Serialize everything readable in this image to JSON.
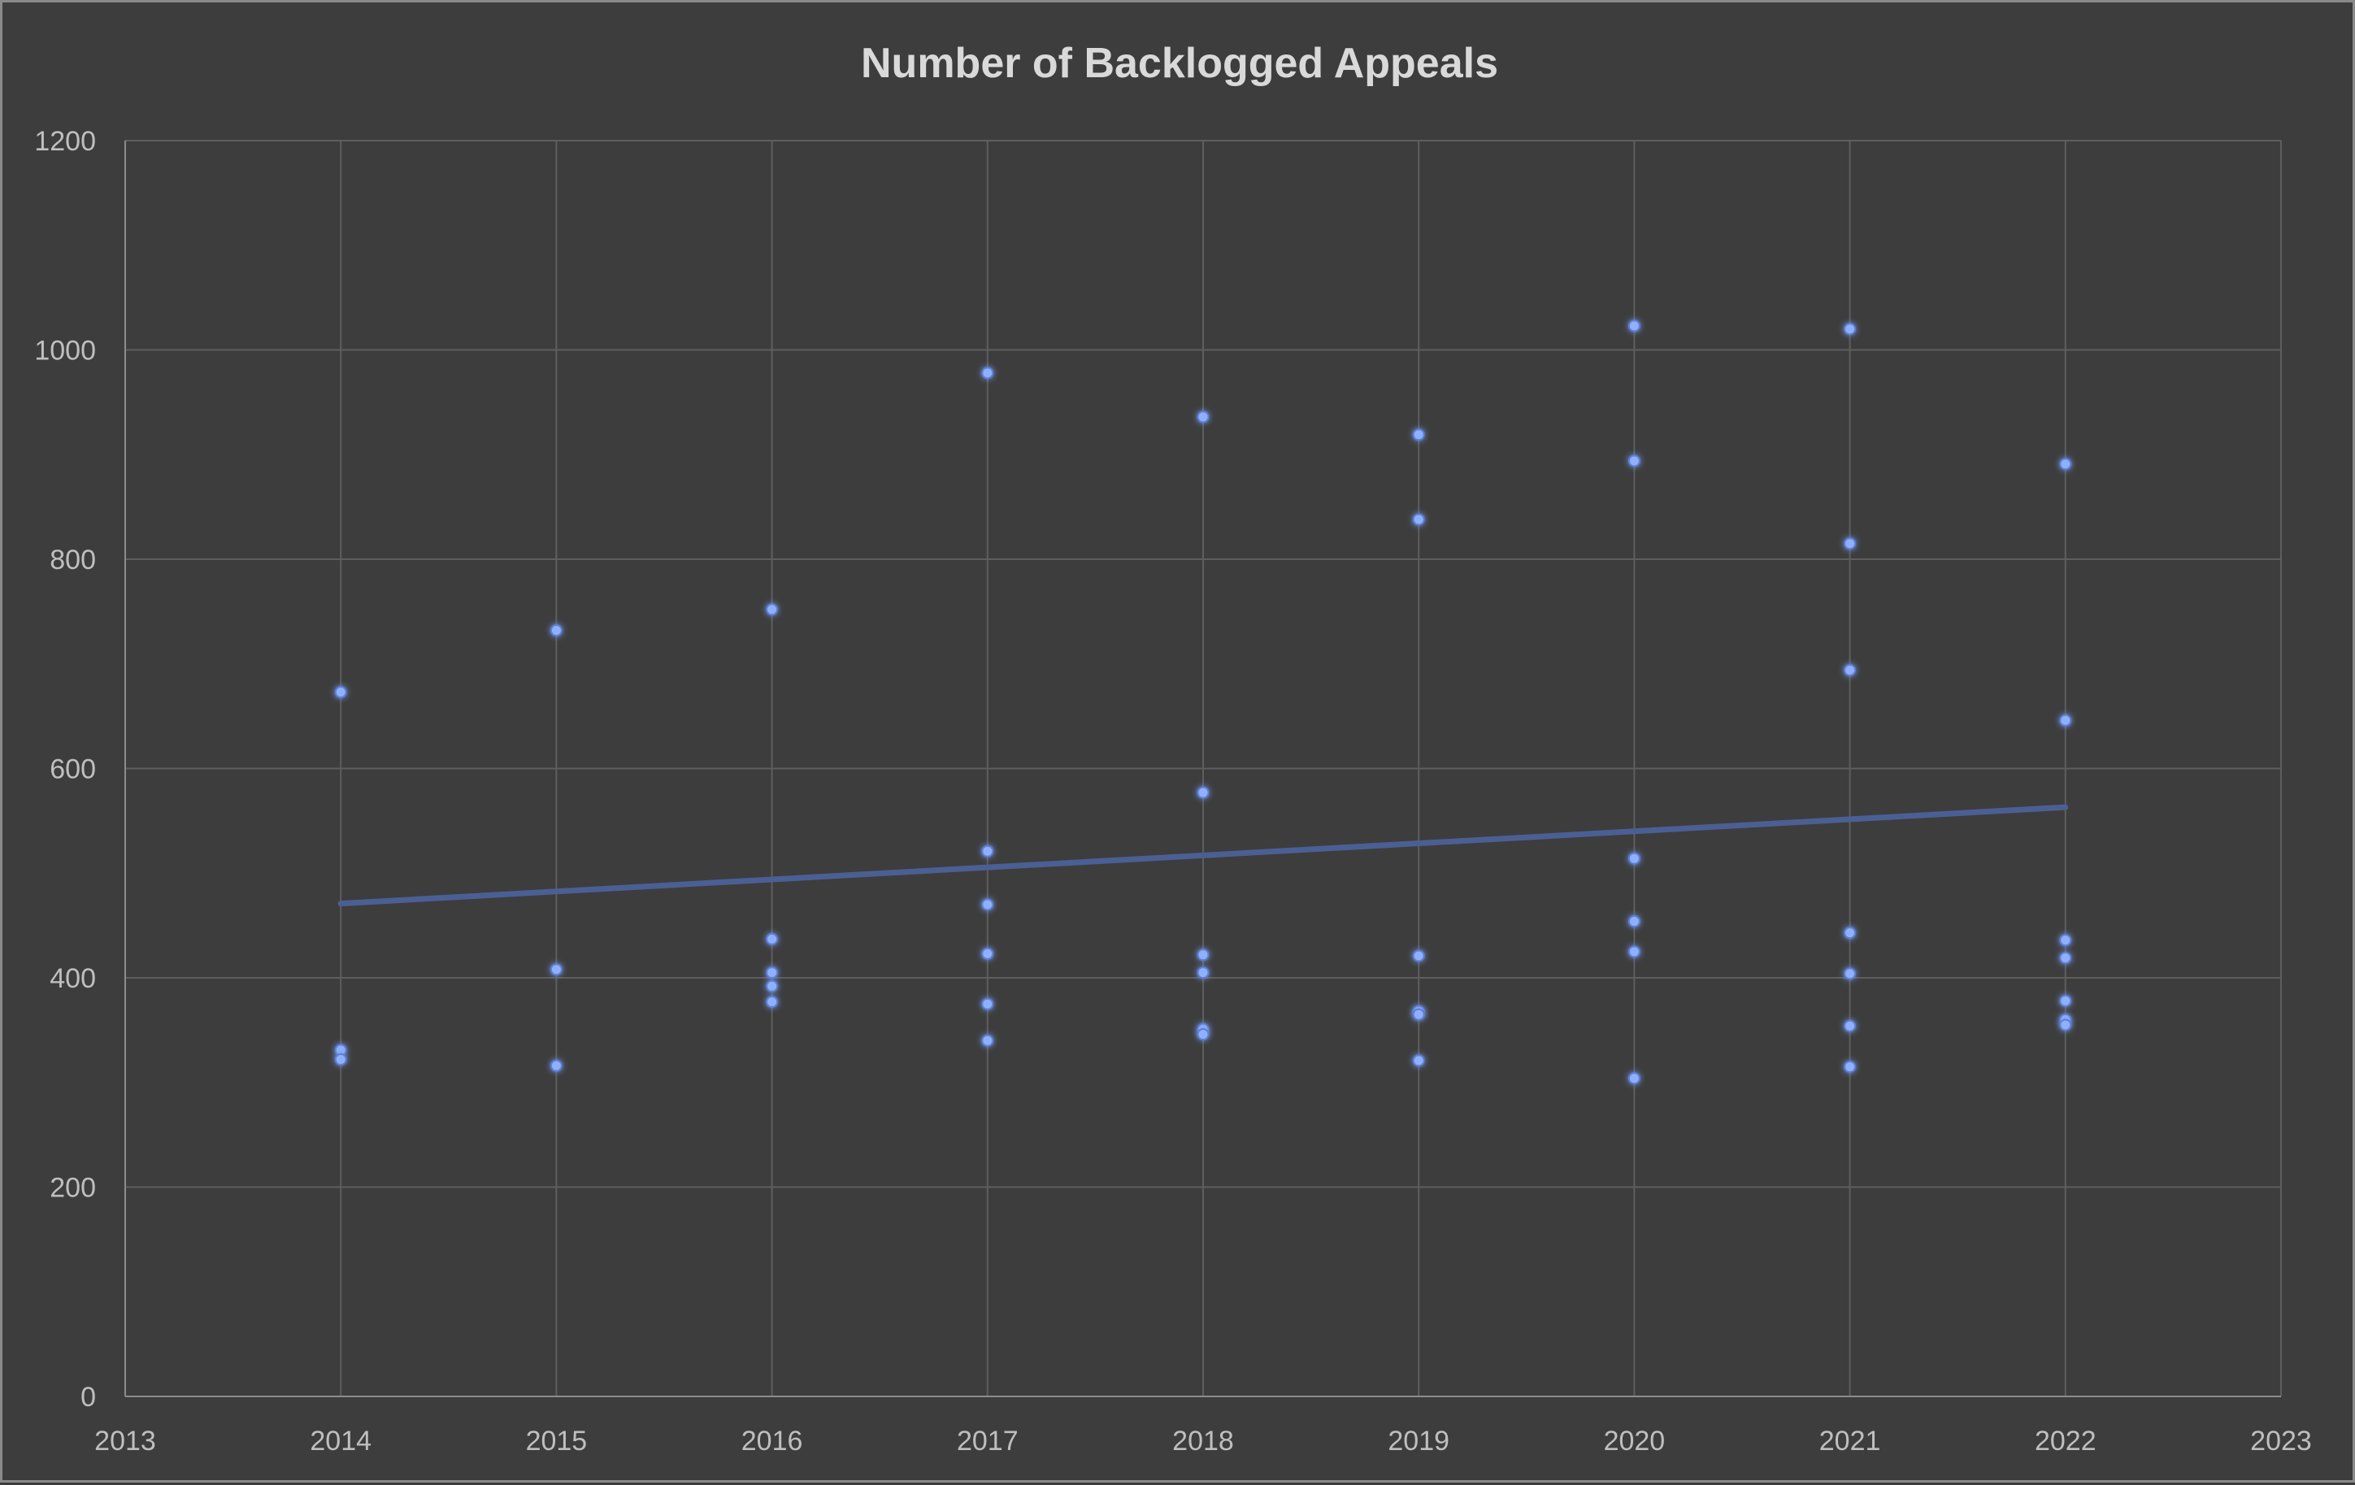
{
  "chart_data": {
    "type": "scatter",
    "title": "Number of Backlogged Appeals",
    "xlabel": "",
    "ylabel": "",
    "xlim": [
      2013,
      2023
    ],
    "ylim": [
      0,
      1200
    ],
    "x_ticks": [
      "2013",
      "2014",
      "2015",
      "2016",
      "2017",
      "2018",
      "2019",
      "2020",
      "2021",
      "2022",
      "2023"
    ],
    "y_ticks": [
      "0",
      "200",
      "400",
      "600",
      "800",
      "1000",
      "1200"
    ],
    "grid": true,
    "legend": "none",
    "point_color": "#8fb0ff",
    "trendline_color": "#4a5f94",
    "series": [
      {
        "points": [
          {
            "x": 2014,
            "y": 673
          },
          {
            "x": 2014,
            "y": 331
          },
          {
            "x": 2014,
            "y": 322
          },
          {
            "x": 2015,
            "y": 732
          },
          {
            "x": 2015,
            "y": 408
          },
          {
            "x": 2015,
            "y": 316
          },
          {
            "x": 2016,
            "y": 752
          },
          {
            "x": 2016,
            "y": 437
          },
          {
            "x": 2016,
            "y": 405
          },
          {
            "x": 2016,
            "y": 392
          },
          {
            "x": 2016,
            "y": 377
          },
          {
            "x": 2017,
            "y": 978
          },
          {
            "x": 2017,
            "y": 521
          },
          {
            "x": 2017,
            "y": 470
          },
          {
            "x": 2017,
            "y": 423
          },
          {
            "x": 2017,
            "y": 375
          },
          {
            "x": 2017,
            "y": 340
          },
          {
            "x": 2018,
            "y": 936
          },
          {
            "x": 2018,
            "y": 577
          },
          {
            "x": 2018,
            "y": 422
          },
          {
            "x": 2018,
            "y": 405
          },
          {
            "x": 2018,
            "y": 351
          },
          {
            "x": 2018,
            "y": 346
          },
          {
            "x": 2019,
            "y": 919
          },
          {
            "x": 2019,
            "y": 838
          },
          {
            "x": 2019,
            "y": 421
          },
          {
            "x": 2019,
            "y": 368
          },
          {
            "x": 2019,
            "y": 365
          },
          {
            "x": 2019,
            "y": 321
          },
          {
            "x": 2020,
            "y": 1023
          },
          {
            "x": 2020,
            "y": 894
          },
          {
            "x": 2020,
            "y": 514
          },
          {
            "x": 2020,
            "y": 454
          },
          {
            "x": 2020,
            "y": 425
          },
          {
            "x": 2020,
            "y": 304
          },
          {
            "x": 2021,
            "y": 1020
          },
          {
            "x": 2021,
            "y": 815
          },
          {
            "x": 2021,
            "y": 694
          },
          {
            "x": 2021,
            "y": 443
          },
          {
            "x": 2021,
            "y": 404
          },
          {
            "x": 2021,
            "y": 354
          },
          {
            "x": 2021,
            "y": 315
          },
          {
            "x": 2022,
            "y": 891
          },
          {
            "x": 2022,
            "y": 646
          },
          {
            "x": 2022,
            "y": 436
          },
          {
            "x": 2022,
            "y": 419
          },
          {
            "x": 2022,
            "y": 378
          },
          {
            "x": 2022,
            "y": 360
          },
          {
            "x": 2022,
            "y": 355
          }
        ]
      }
    ],
    "trendline": {
      "type": "linear",
      "x": [
        2014,
        2022
      ],
      "y": [
        471,
        563
      ]
    }
  }
}
